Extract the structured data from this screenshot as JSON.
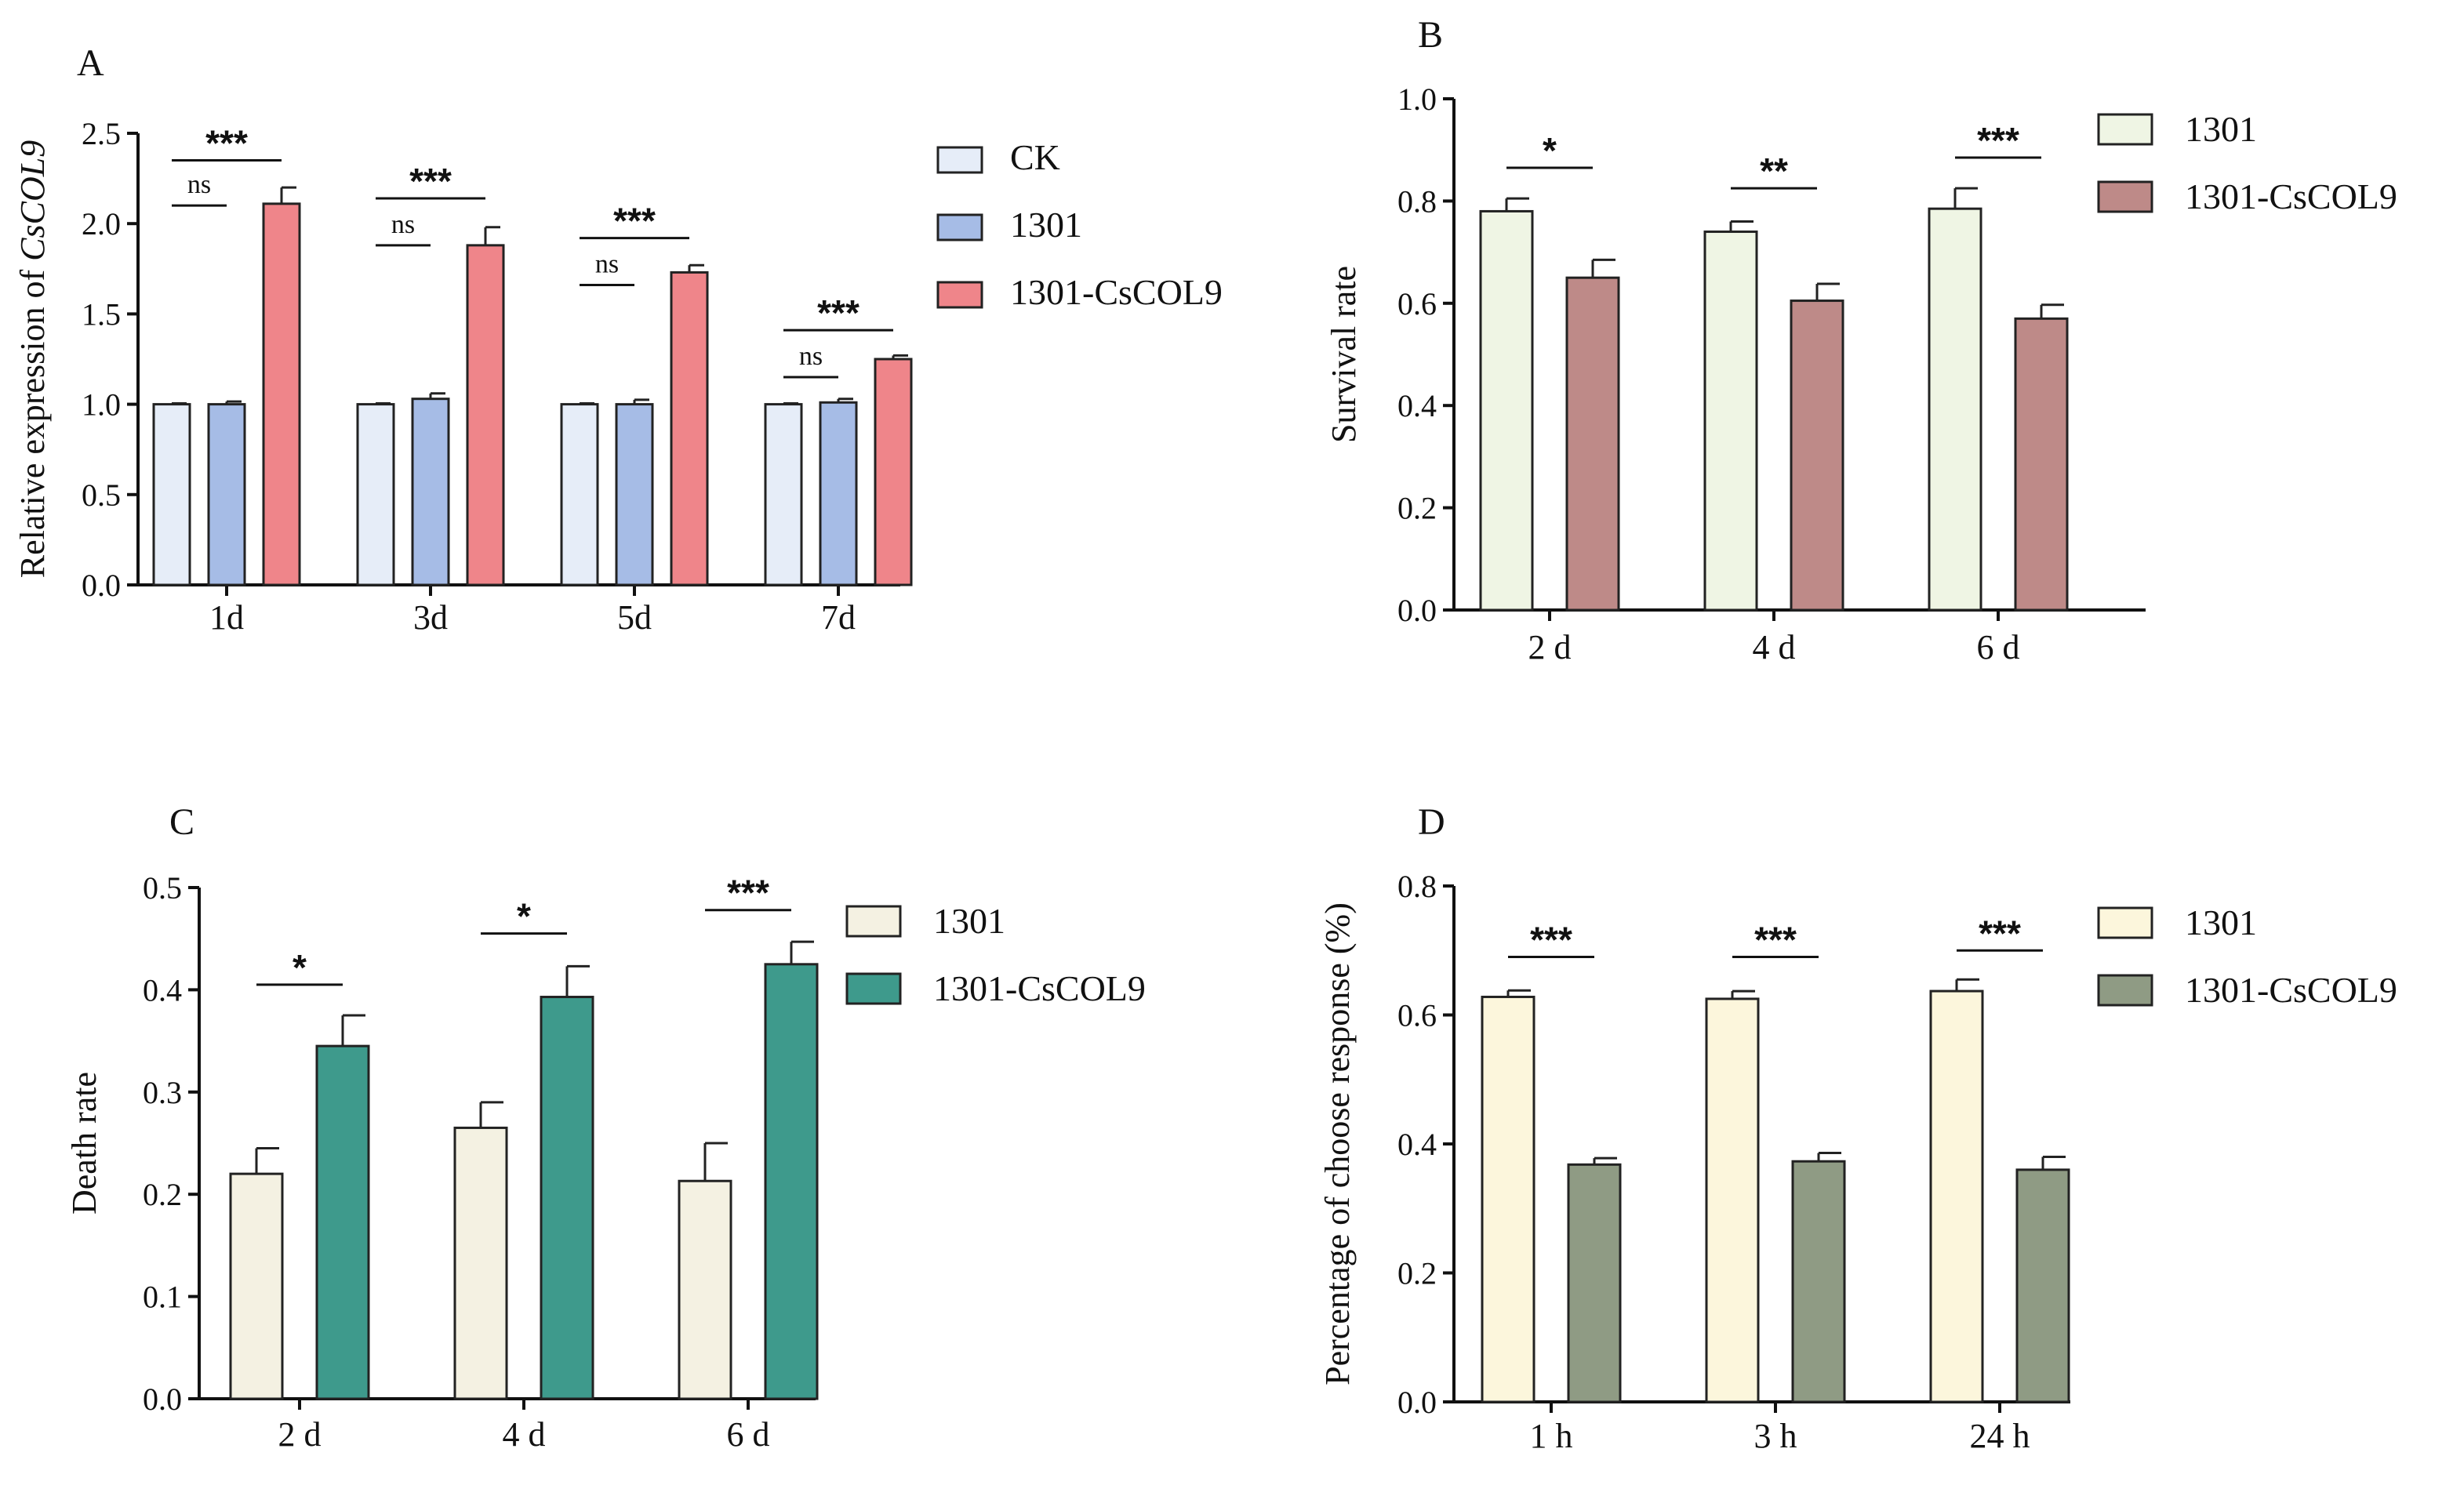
{
  "figure": "Four-panel bar chart figure",
  "chart_data": [
    {
      "id": "A",
      "type": "bar",
      "panel_label": "A",
      "ylabel_prefix": "Relative expression of ",
      "ylabel_gene": "CsCOL9",
      "ylim": [
        0,
        2.5
      ],
      "yticks": [
        "0.0",
        "0.5",
        "1.0",
        "1.5",
        "2.0",
        "2.5"
      ],
      "ytick_values": [
        0,
        0.5,
        1.0,
        1.5,
        2.0,
        2.5
      ],
      "categories": [
        "1d",
        "3d",
        "5d",
        "7d"
      ],
      "series": [
        {
          "name": "CK",
          "color": "#e6edf8",
          "values": [
            1.0,
            1.0,
            1.0,
            1.0
          ],
          "errors": [
            0.005,
            0.005,
            0.005,
            0.005
          ]
        },
        {
          "name": "1301",
          "color": "#a6bce6",
          "values": [
            1.0,
            1.03,
            1.0,
            1.01
          ],
          "errors": [
            0.015,
            0.03,
            0.025,
            0.02
          ]
        },
        {
          "name": "1301-CsCOL9",
          "color": "#ef858a",
          "values": [
            2.11,
            1.88,
            1.73,
            1.25
          ],
          "errors": [
            0.09,
            0.1,
            0.04,
            0.02
          ]
        }
      ],
      "significance": [
        {
          "category": 0,
          "from": 0,
          "to": 2,
          "label": "***",
          "level": 2.35
        },
        {
          "category": 0,
          "from": 0,
          "to": 1,
          "label": "ns",
          "level": 2.1
        },
        {
          "category": 1,
          "from": 0,
          "to": 2,
          "label": "***",
          "level": 2.14
        },
        {
          "category": 1,
          "from": 0,
          "to": 1,
          "label": "ns",
          "level": 1.88
        },
        {
          "category": 2,
          "from": 0,
          "to": 2,
          "label": "***",
          "level": 1.92
        },
        {
          "category": 2,
          "from": 0,
          "to": 1,
          "label": "ns",
          "level": 1.66
        },
        {
          "category": 3,
          "from": 0,
          "to": 2,
          "label": "***",
          "level": 1.41
        },
        {
          "category": 3,
          "from": 0,
          "to": 1,
          "label": "ns",
          "level": 1.15
        }
      ]
    },
    {
      "id": "B",
      "type": "bar",
      "panel_label": "B",
      "ylabel": "Survival rate",
      "ylim": [
        0,
        1.0
      ],
      "yticks": [
        "0.0",
        "0.2",
        "0.4",
        "0.6",
        "0.8",
        "1.0"
      ],
      "ytick_values": [
        0,
        0.2,
        0.4,
        0.6,
        0.8,
        1.0
      ],
      "categories": [
        "2 d",
        "4 d",
        "6 d"
      ],
      "series": [
        {
          "name": "1301",
          "color": "#eff5e4",
          "values": [
            0.78,
            0.74,
            0.785
          ],
          "errors": [
            0.025,
            0.02,
            0.04
          ]
        },
        {
          "name": "1301-CsCOL9",
          "color": "#be8a88",
          "values": [
            0.65,
            0.605,
            0.57
          ],
          "errors": [
            0.035,
            0.033,
            0.027
          ]
        }
      ],
      "significance": [
        {
          "category": 0,
          "from": 0,
          "to": 1,
          "label": "*",
          "level": 0.865
        },
        {
          "category": 1,
          "from": 0,
          "to": 1,
          "label": "**",
          "level": 0.825
        },
        {
          "category": 2,
          "from": 0,
          "to": 1,
          "label": "***",
          "level": 0.885
        }
      ]
    },
    {
      "id": "C",
      "type": "bar",
      "panel_label": "C",
      "ylabel": "Death rate",
      "ylim": [
        0,
        0.5
      ],
      "yticks": [
        "0.0",
        "0.1",
        "0.2",
        "0.3",
        "0.4",
        "0.5"
      ],
      "ytick_values": [
        0,
        0.1,
        0.2,
        0.3,
        0.4,
        0.5
      ],
      "categories": [
        "2 d",
        "4 d",
        "6 d"
      ],
      "series": [
        {
          "name": "1301",
          "color": "#f4f1e2",
          "values": [
            0.22,
            0.265,
            0.213
          ],
          "errors": [
            0.025,
            0.025,
            0.037
          ]
        },
        {
          "name": "1301-CsCOL9",
          "color": "#3e9a8c",
          "values": [
            0.345,
            0.393,
            0.425
          ],
          "errors": [
            0.03,
            0.03,
            0.022
          ]
        }
      ],
      "significance": [
        {
          "category": 0,
          "from": 0,
          "to": 1,
          "label": "*",
          "level": 0.405
        },
        {
          "category": 1,
          "from": 0,
          "to": 1,
          "label": "*",
          "level": 0.455
        },
        {
          "category": 2,
          "from": 0,
          "to": 1,
          "label": "***",
          "level": 0.478
        }
      ]
    },
    {
      "id": "D",
      "type": "bar",
      "panel_label": "D",
      "ylabel": "Percentage of choose response (%)",
      "ylim": [
        0,
        0.8
      ],
      "yticks": [
        "0.0",
        "0.2",
        "0.4",
        "0.6",
        "0.8"
      ],
      "ytick_values": [
        0,
        0.2,
        0.4,
        0.6,
        0.8
      ],
      "categories": [
        "1 h",
        "3 h",
        "24 h"
      ],
      "series": [
        {
          "name": "1301",
          "color": "#fcf6dc",
          "values": [
            0.628,
            0.625,
            0.637
          ],
          "errors": [
            0.01,
            0.012,
            0.018
          ]
        },
        {
          "name": "1301-CsCOL9",
          "color": "#8f9b84",
          "values": [
            0.368,
            0.373,
            0.36
          ],
          "errors": [
            0.01,
            0.013,
            0.02
          ]
        }
      ],
      "significance": [
        {
          "category": 0,
          "from": 0,
          "to": 1,
          "label": "***",
          "level": 0.69
        },
        {
          "category": 1,
          "from": 0,
          "to": 1,
          "label": "***",
          "level": 0.69
        },
        {
          "category": 2,
          "from": 0,
          "to": 1,
          "label": "***",
          "level": 0.7
        }
      ]
    }
  ]
}
